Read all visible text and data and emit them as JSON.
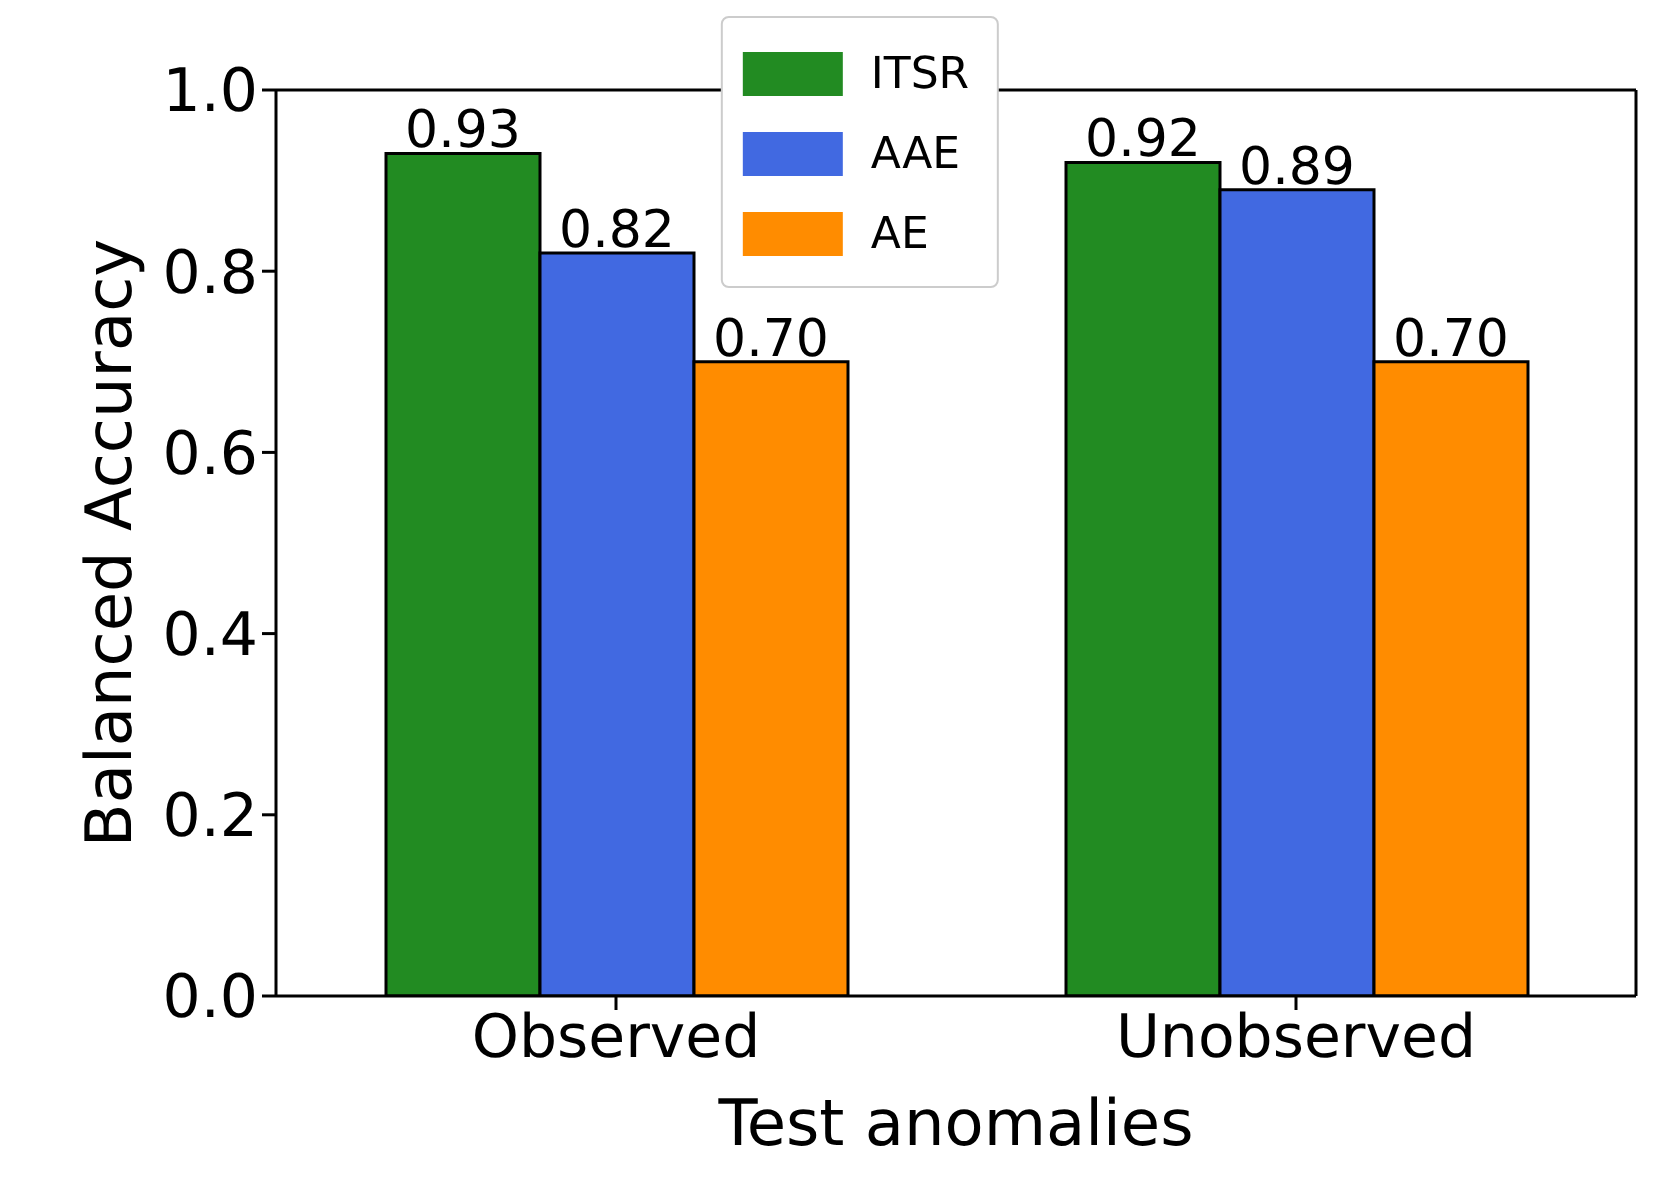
{
  "chart_data": {
    "type": "bar",
    "xlabel": "Test anomalies",
    "ylabel": "Balanced Accuracy",
    "categories": [
      "Observed",
      "Unobserved"
    ],
    "series": [
      {
        "name": "ITSR",
        "color": "#228b22",
        "values": [
          0.93,
          0.92
        ],
        "value_labels": [
          "0.93",
          "0.92"
        ]
      },
      {
        "name": "AAE",
        "color": "#4169e1",
        "values": [
          0.82,
          0.89
        ],
        "value_labels": [
          "0.82",
          "0.89"
        ]
      },
      {
        "name": "AE",
        "color": "#ff8c00",
        "values": [
          0.7,
          0.7
        ],
        "value_labels": [
          "0.70",
          "0.70"
        ]
      }
    ],
    "ylim": [
      0,
      1
    ],
    "yticks": [
      {
        "value": 0,
        "label": "0.0"
      },
      {
        "value": 0.2,
        "label": "0.2"
      },
      {
        "value": 0.4,
        "label": "0.4"
      },
      {
        "value": 0.6,
        "label": "0.6"
      },
      {
        "value": 0.8,
        "label": "0.8"
      },
      {
        "value": 1,
        "label": "1.0"
      }
    ],
    "grid": false,
    "legend": "top"
  }
}
